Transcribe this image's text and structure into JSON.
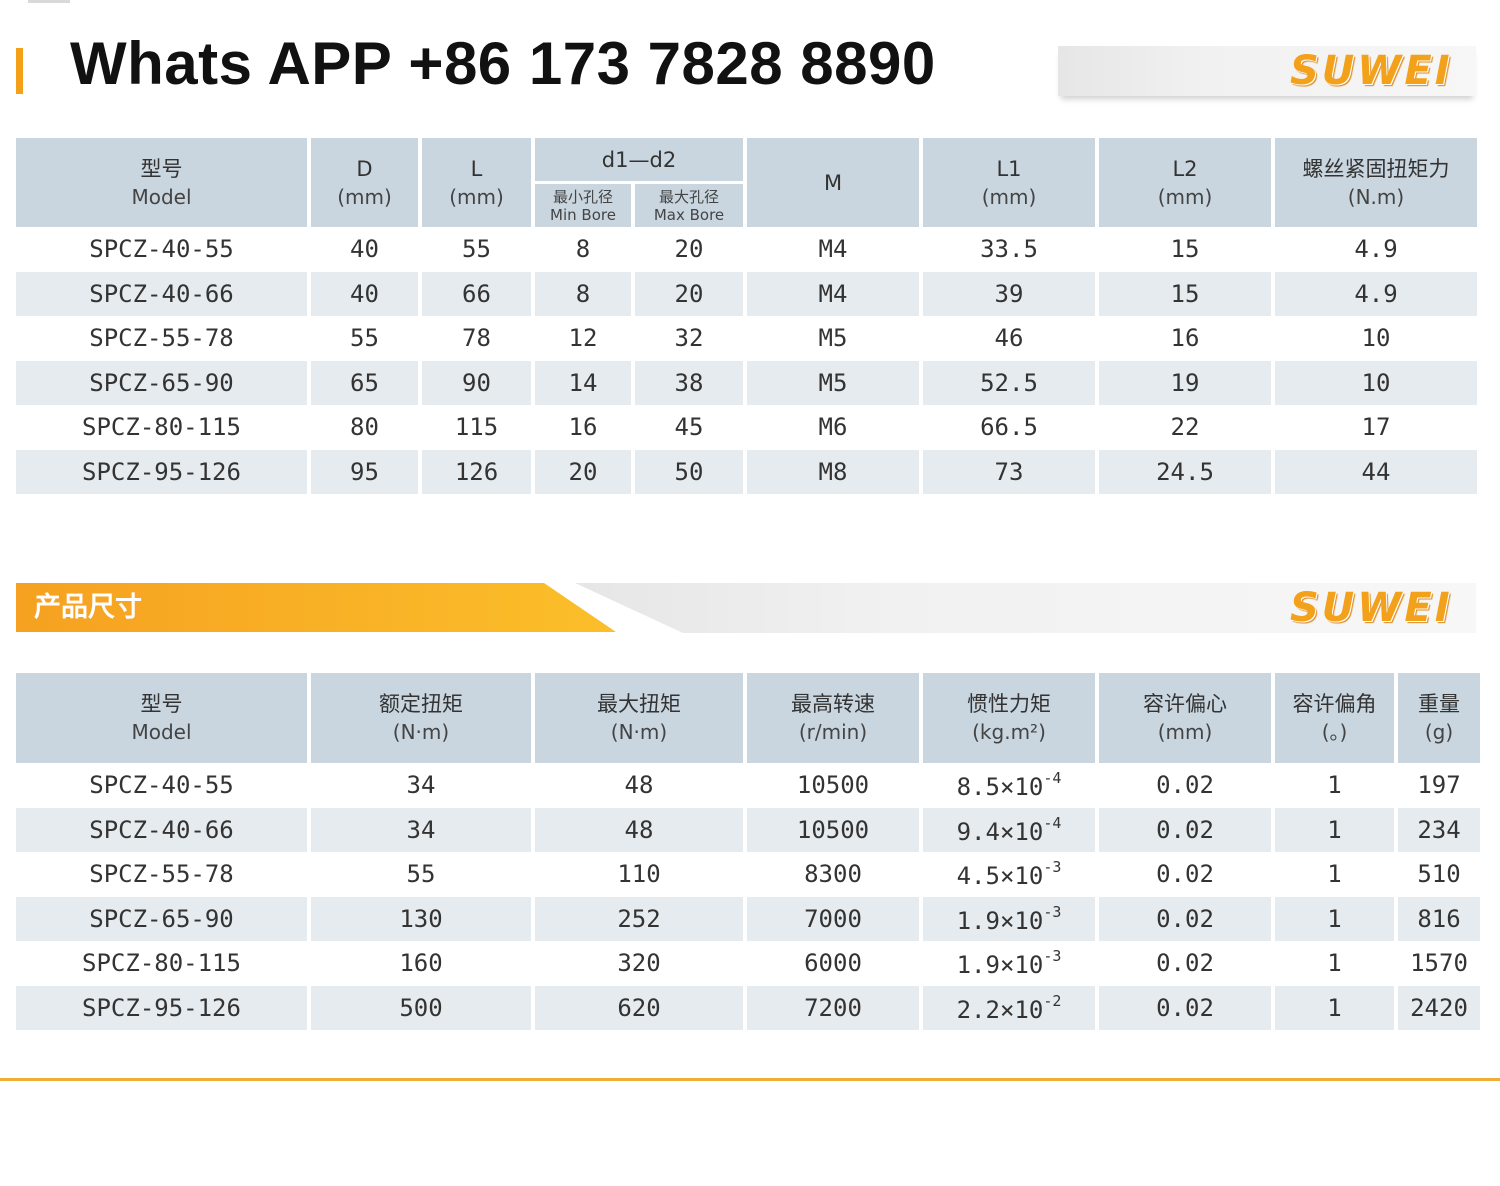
{
  "header": {
    "whatsapp": "Whats APP +86 173 7828 8890",
    "brand": "SUWEI",
    "accent_color": "#f4a018"
  },
  "table1": {
    "columns": [
      {
        "cn": "型号",
        "en": "Model"
      },
      {
        "cn": "D",
        "en": "(mm)"
      },
      {
        "cn": "L",
        "en": "(mm)"
      },
      {
        "cn": "d1—d2",
        "sub": [
          {
            "cn": "最小孔径",
            "en": "Min Bore"
          },
          {
            "cn": "最大孔径",
            "en": "Max Bore"
          }
        ]
      },
      {
        "cn": "M",
        "en": ""
      },
      {
        "cn": "L1",
        "en": "(mm)"
      },
      {
        "cn": "L2",
        "en": "(mm)"
      },
      {
        "cn": "螺丝紧固扭矩力",
        "en": "(N.m)"
      }
    ],
    "rows": [
      [
        "SPCZ-40-55",
        "40",
        "55",
        "8",
        "20",
        "M4",
        "33.5",
        "15",
        "4.9"
      ],
      [
        "SPCZ-40-66",
        "40",
        "66",
        "8",
        "20",
        "M4",
        "39",
        "15",
        "4.9"
      ],
      [
        "SPCZ-55-78",
        "55",
        "78",
        "12",
        "32",
        "M5",
        "46",
        "16",
        "10"
      ],
      [
        "SPCZ-65-90",
        "65",
        "90",
        "14",
        "38",
        "M5",
        "52.5",
        "19",
        "10"
      ],
      [
        "SPCZ-80-115",
        "80",
        "115",
        "16",
        "45",
        "M6",
        "66.5",
        "22",
        "17"
      ],
      [
        "SPCZ-95-126",
        "95",
        "126",
        "20",
        "50",
        "M8",
        "73",
        "24.5",
        "44"
      ]
    ]
  },
  "section": {
    "title": "产品尺寸",
    "brand": "SUWEI"
  },
  "table2": {
    "columns": [
      {
        "cn": "型号",
        "en": "Model"
      },
      {
        "cn": "额定扭矩",
        "en": "(N·m)"
      },
      {
        "cn": "最大扭矩",
        "en": "(N·m)"
      },
      {
        "cn": "最高转速",
        "en": "(r/min)"
      },
      {
        "cn": "惯性力矩",
        "en": "(kg.m²)"
      },
      {
        "cn": "容许偏心",
        "en": "(mm)"
      },
      {
        "cn": "容许偏角",
        "en": "(。)"
      },
      {
        "cn": "重量",
        "en": "(g)"
      }
    ],
    "rows": [
      [
        "SPCZ-40-55",
        "34",
        "48",
        "10500",
        {
          "base": "8.5×10",
          "exp": "-4"
        },
        "0.02",
        "1",
        "197"
      ],
      [
        "SPCZ-40-66",
        "34",
        "48",
        "10500",
        {
          "base": "9.4×10",
          "exp": "-4"
        },
        "0.02",
        "1",
        "234"
      ],
      [
        "SPCZ-55-78",
        "55",
        "110",
        "8300",
        {
          "base": "4.5×10",
          "exp": "-3"
        },
        "0.02",
        "1",
        "510"
      ],
      [
        "SPCZ-65-90",
        "130",
        "252",
        "7000",
        {
          "base": "1.9×10",
          "exp": "-3"
        },
        "0.02",
        "1",
        "816"
      ],
      [
        "SPCZ-80-115",
        "160",
        "320",
        "6000",
        {
          "base": "1.9×10",
          "exp": "-3"
        },
        "0.02",
        "1",
        "1570"
      ],
      [
        "SPCZ-95-126",
        "500",
        "620",
        "7200",
        {
          "base": "2.2×10",
          "exp": "-2"
        },
        "0.02",
        "1",
        "2420"
      ]
    ]
  }
}
